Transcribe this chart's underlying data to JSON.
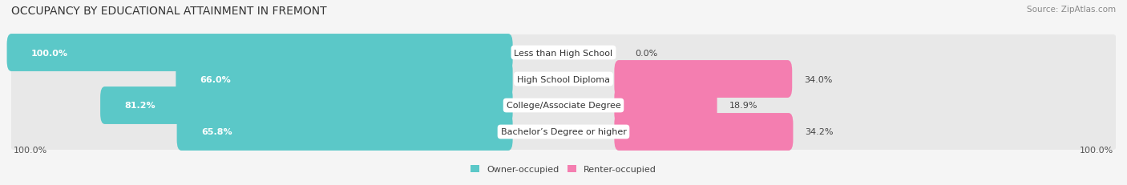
{
  "title": "OCCUPANCY BY EDUCATIONAL ATTAINMENT IN FREMONT",
  "source": "Source: ZipAtlas.com",
  "categories": [
    "Less than High School",
    "High School Diploma",
    "College/Associate Degree",
    "Bachelor’s Degree or higher"
  ],
  "owner_pct": [
    100.0,
    66.0,
    81.2,
    65.8
  ],
  "renter_pct": [
    0.0,
    34.0,
    18.9,
    34.2
  ],
  "owner_color": "#5BC8C8",
  "renter_color": "#F47EB0",
  "bg_color": "#f5f5f5",
  "row_bg_color": "#e8e8e8",
  "label_bg_color": "#ffffff",
  "title_fontsize": 10,
  "label_fontsize": 8,
  "tick_fontsize": 8,
  "source_fontsize": 7.5,
  "bar_height": 0.62,
  "x_left_label": "100.0%",
  "x_right_label": "100.0%",
  "owner_label": "Owner-occupied",
  "renter_label": "Renter-occupied"
}
